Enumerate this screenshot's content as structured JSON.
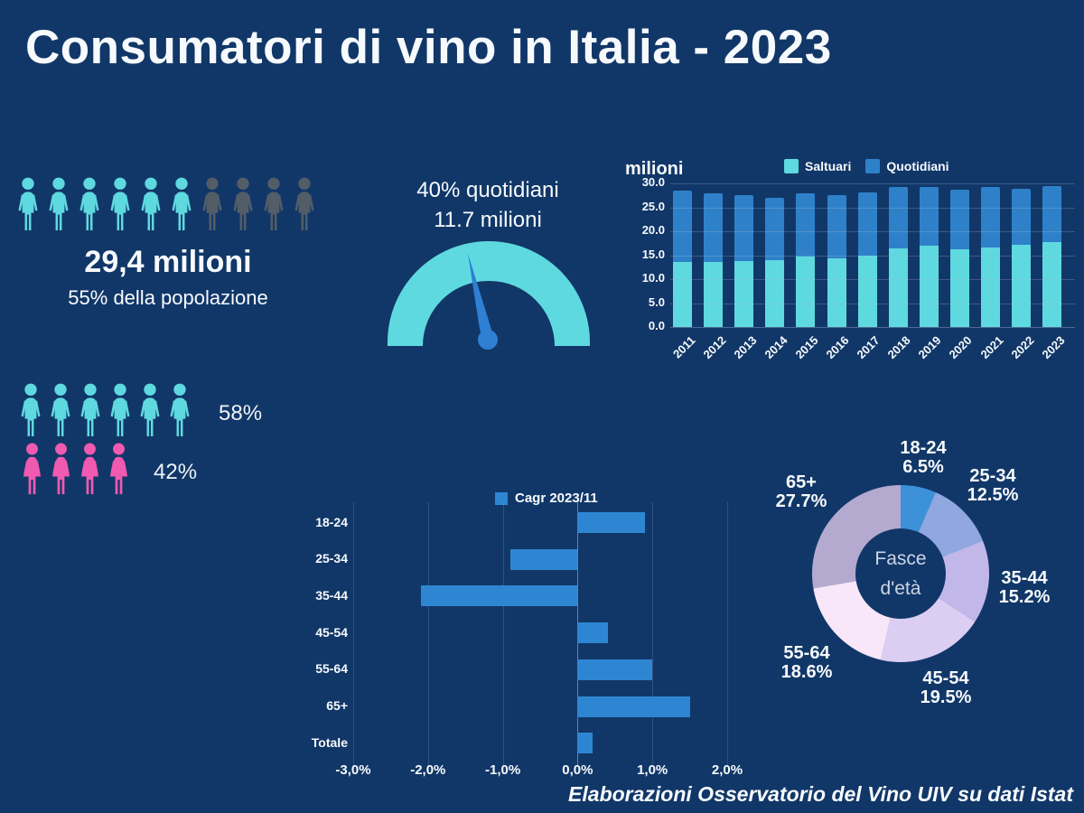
{
  "title": "Consumatori di vino in Italia - 2023",
  "footer": "Elaborazioni Osservatorio del Vino UIV su dati Istat",
  "background_color": "#113768",
  "text_color": "#f7fafd",
  "population": {
    "value": "29,4 milioni",
    "subtitle": "55% della popolazione",
    "icons": {
      "total": 10,
      "highlighted": 6,
      "highlight_color": "#5fd9e0",
      "muted_color": "#535d68"
    }
  },
  "gauge": {
    "line1": "40% quotidiani",
    "line2": "11.7 milioni",
    "percent": 40,
    "arc_color": "#5fd9e0",
    "needle_color": "#2f7fd3"
  },
  "gender": {
    "rows": [
      {
        "group": "maschi",
        "count": 6,
        "color": "#5fd9e0",
        "label": "58%"
      },
      {
        "group": "femmine",
        "count": 4,
        "color": "#f05ab0",
        "label": "42%"
      }
    ]
  },
  "chart_data": [
    {
      "id": "consumatori-per-anno",
      "type": "bar",
      "stacked": true,
      "title": "milioni",
      "categories": [
        "2011",
        "2012",
        "2013",
        "2014",
        "2015",
        "2016",
        "2017",
        "2018",
        "2019",
        "2020",
        "2021",
        "2022",
        "2023"
      ],
      "series": [
        {
          "name": "Saltuari",
          "color": "#5fd9e0",
          "values": [
            13.6,
            13.5,
            13.8,
            13.9,
            14.7,
            14.3,
            15.0,
            16.4,
            16.9,
            16.2,
            16.7,
            17.2,
            17.7
          ]
        },
        {
          "name": "Quotidiani",
          "color": "#2e81c9",
          "values": [
            14.8,
            14.4,
            13.7,
            13.1,
            13.3,
            13.3,
            13.2,
            12.8,
            12.3,
            12.5,
            12.5,
            11.6,
            11.7
          ]
        }
      ],
      "ylim": [
        0,
        30
      ],
      "yticks": [
        "0.0",
        "5.0",
        "10.0",
        "15.0",
        "20.0",
        "25.0",
        "30.0"
      ],
      "legend_position": "top",
      "grid": true
    },
    {
      "id": "cagr-per-eta",
      "type": "bar",
      "orientation": "horizontal",
      "legend": "Cagr 2023/11",
      "bar_color": "#2e86d2",
      "categories": [
        "18-24",
        "25-34",
        "35-44",
        "45-54",
        "55-64",
        "65+",
        "Totale"
      ],
      "values": [
        0.9,
        -0.9,
        -2.1,
        0.4,
        1.0,
        1.5,
        0.2
      ],
      "xlim": [
        -3,
        2
      ],
      "xticks": [
        "-3,0%",
        "-2,0%",
        "-1,0%",
        "0,0%",
        "1,0%",
        "2,0%"
      ],
      "grid": true
    },
    {
      "id": "fasce-eta",
      "type": "pie",
      "donut": true,
      "center_lines": [
        "Fasce",
        "d'età"
      ],
      "slices": [
        {
          "label": "18-24",
          "value": 6.5,
          "display": "6.5%",
          "color": "#3d91d8"
        },
        {
          "label": "25-34",
          "value": 12.5,
          "display": "12.5%",
          "color": "#90a7e0"
        },
        {
          "label": "35-44",
          "value": 15.2,
          "display": "15.2%",
          "color": "#c2b7e9"
        },
        {
          "label": "45-54",
          "value": 19.5,
          "display": "19.5%",
          "color": "#dccdf2"
        },
        {
          "label": "55-64",
          "value": 18.6,
          "display": "18.6%",
          "color": "#f8e6f9"
        },
        {
          "label": "65+",
          "value": 27.7,
          "display": "27.7%",
          "color": "#b4a9ce"
        }
      ]
    }
  ]
}
